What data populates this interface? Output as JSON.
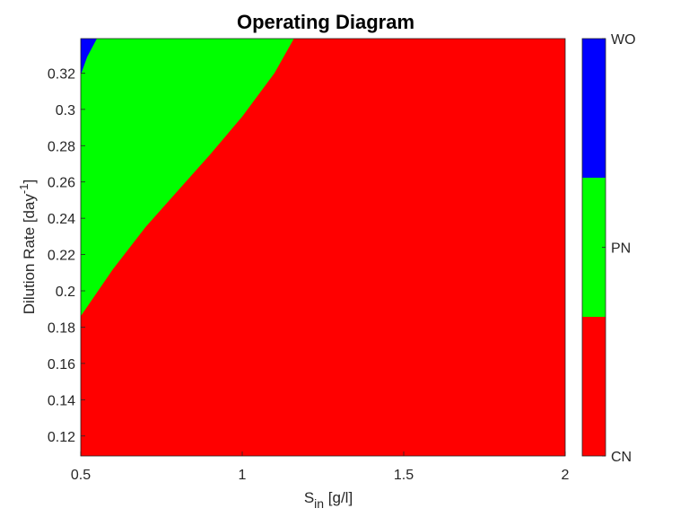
{
  "chart_data": {
    "type": "heatmap",
    "title": "Operating Diagram",
    "xlabel": {
      "main": "S",
      "sub": "in",
      "rest": " [g/l]"
    },
    "ylabel": {
      "main": "Dilution Rate [day",
      "sup": "-1",
      "rest": "]"
    },
    "xlim": [
      0.5,
      2
    ],
    "ylim": [
      0.109,
      0.339
    ],
    "xticks": [
      0.5,
      1,
      1.5,
      2
    ],
    "xtick_labels": [
      "0.5",
      "1",
      "1.5",
      "2"
    ],
    "yticks": [
      0.12,
      0.14,
      0.16,
      0.18,
      0.2,
      0.22,
      0.24,
      0.26,
      0.28,
      0.3,
      0.32
    ],
    "ytick_labels": [
      "0.12",
      "0.14",
      "0.16",
      "0.18",
      "0.2",
      "0.22",
      "0.24",
      "0.26",
      "0.28",
      "0.3",
      "0.32"
    ],
    "regions": [
      {
        "label": "CN",
        "color": "#ff0000"
      },
      {
        "label": "PN",
        "color": "#00ff00"
      },
      {
        "label": "WO",
        "color": "#0000ff"
      }
    ],
    "boundaries": {
      "CN_PN": [
        [
          0.5,
          0.186
        ],
        [
          0.6,
          0.212
        ],
        [
          0.7,
          0.235
        ],
        [
          0.8,
          0.255
        ],
        [
          0.9,
          0.275
        ],
        [
          1.0,
          0.296
        ],
        [
          1.1,
          0.32
        ],
        [
          1.16,
          0.339
        ]
      ],
      "PN_WO": [
        [
          0.5,
          0.319
        ],
        [
          0.52,
          0.329
        ],
        [
          0.55,
          0.339
        ]
      ]
    },
    "colorbar": {
      "tick_labels": [
        "CN",
        "PN",
        "WO"
      ],
      "grid": false
    },
    "legend": "colorbar-right"
  }
}
